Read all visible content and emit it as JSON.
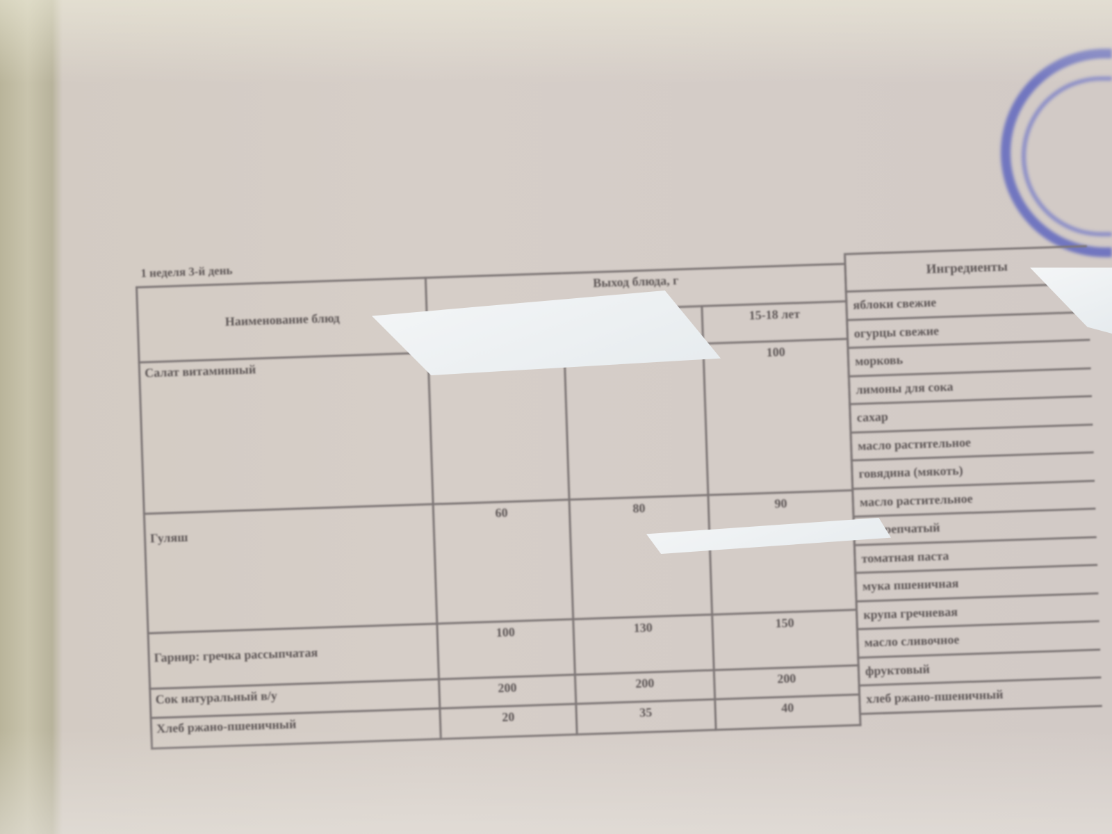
{
  "caption": "1 неделя 3-й день",
  "headers": {
    "dish_name": "Наименование блюд",
    "portion": "Выход блюда, г",
    "age_group": "15-18 лет",
    "ingredients": "Ингредиенты"
  },
  "rows": [
    {
      "name": "Салат витаминный",
      "v1": "",
      "v2": "",
      "v3": "100"
    },
    {
      "name": "Гуляш",
      "v1": "60",
      "v2": "80",
      "v3": "90"
    },
    {
      "name": "Гарнир: гречка рассыпчатая",
      "v1": "100",
      "v2": "130",
      "v3": "150"
    },
    {
      "name": "Сок натуральный в/у",
      "v1": "200",
      "v2": "200",
      "v3": "200"
    },
    {
      "name": "Хлеб ржано-пшеничный",
      "v1": "20",
      "v2": "35",
      "v3": "40"
    }
  ],
  "ingredients": [
    "яблоки свежие",
    "огурцы свежие",
    "морковь",
    "лимоны для сока",
    "сахар",
    "масло растительное",
    "говядина (мякоть)",
    "масло растительное",
    "лук репчатый",
    "томатная паста",
    "мука пшеничная",
    "крупа гречневая",
    "масло сливочное",
    "фруктовый",
    "хлеб ржано-пшеничный"
  ],
  "stamp_color": "#505abe"
}
